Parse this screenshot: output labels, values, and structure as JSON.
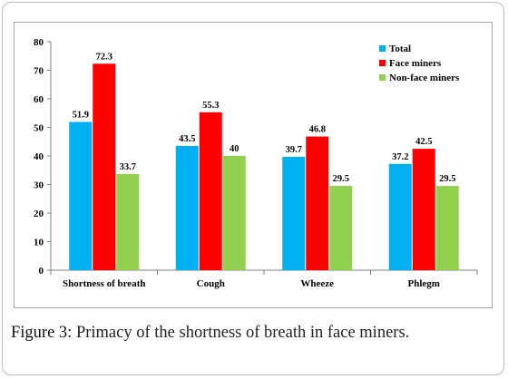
{
  "chart_data": {
    "type": "bar",
    "categories": [
      "Shortness of breath",
      "Cough",
      "Wheeze",
      "Phlegm"
    ],
    "series": [
      {
        "name": "Total",
        "color": "#00b0f0",
        "values": [
          51.9,
          43.5,
          39.7,
          37.2
        ]
      },
      {
        "name": "Face miners",
        "color": "#ff0000",
        "values": [
          72.3,
          55.3,
          46.8,
          42.5
        ]
      },
      {
        "name": "Non-face miners",
        "color": "#92d050",
        "values": [
          33.7,
          40,
          29.5,
          29.5
        ]
      }
    ],
    "data_labels": [
      [
        "51.9",
        "43.5",
        "39.7",
        "37.2"
      ],
      [
        "72.3",
        "55.3",
        "46.8",
        "42.5"
      ],
      [
        "33.7",
        "40",
        "29.5",
        "29.5"
      ]
    ],
    "yticks": [
      0,
      10,
      20,
      30,
      40,
      50,
      60,
      70,
      80
    ],
    "ylim": [
      0,
      80
    ],
    "title": "",
    "xlabel": "",
    "ylabel": "",
    "grid": false,
    "legend_position": "top-right"
  },
  "caption": {
    "label": "Figure 3:",
    "text": " Primacy of the shortness of breath in face miners."
  }
}
